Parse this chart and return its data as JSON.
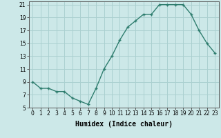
{
  "x": [
    0,
    1,
    2,
    3,
    4,
    5,
    6,
    7,
    8,
    9,
    10,
    11,
    12,
    13,
    14,
    15,
    16,
    17,
    18,
    19,
    20,
    21,
    22,
    23
  ],
  "y": [
    9,
    8,
    8,
    7.5,
    7.5,
    6.5,
    6,
    5.5,
    8,
    11,
    13,
    15.5,
    17.5,
    18.5,
    19.5,
    19.5,
    21,
    21,
    21,
    21,
    19.5,
    17,
    15,
    13.5
  ],
  "line_color": "#2e7d6e",
  "marker": "+",
  "bg_color": "#cce8e8",
  "grid_color": "#aad0d0",
  "xlabel": "Humidex (Indice chaleur)",
  "ylim": [
    5,
    21.5
  ],
  "xlim": [
    -0.5,
    23.5
  ],
  "yticks": [
    5,
    7,
    9,
    11,
    13,
    15,
    17,
    19,
    21
  ],
  "xticks": [
    0,
    1,
    2,
    3,
    4,
    5,
    6,
    7,
    8,
    9,
    10,
    11,
    12,
    13,
    14,
    15,
    16,
    17,
    18,
    19,
    20,
    21,
    22,
    23
  ],
  "tick_fontsize": 5.5,
  "xlabel_fontsize": 7,
  "line_width": 1.0,
  "marker_size": 3.5
}
